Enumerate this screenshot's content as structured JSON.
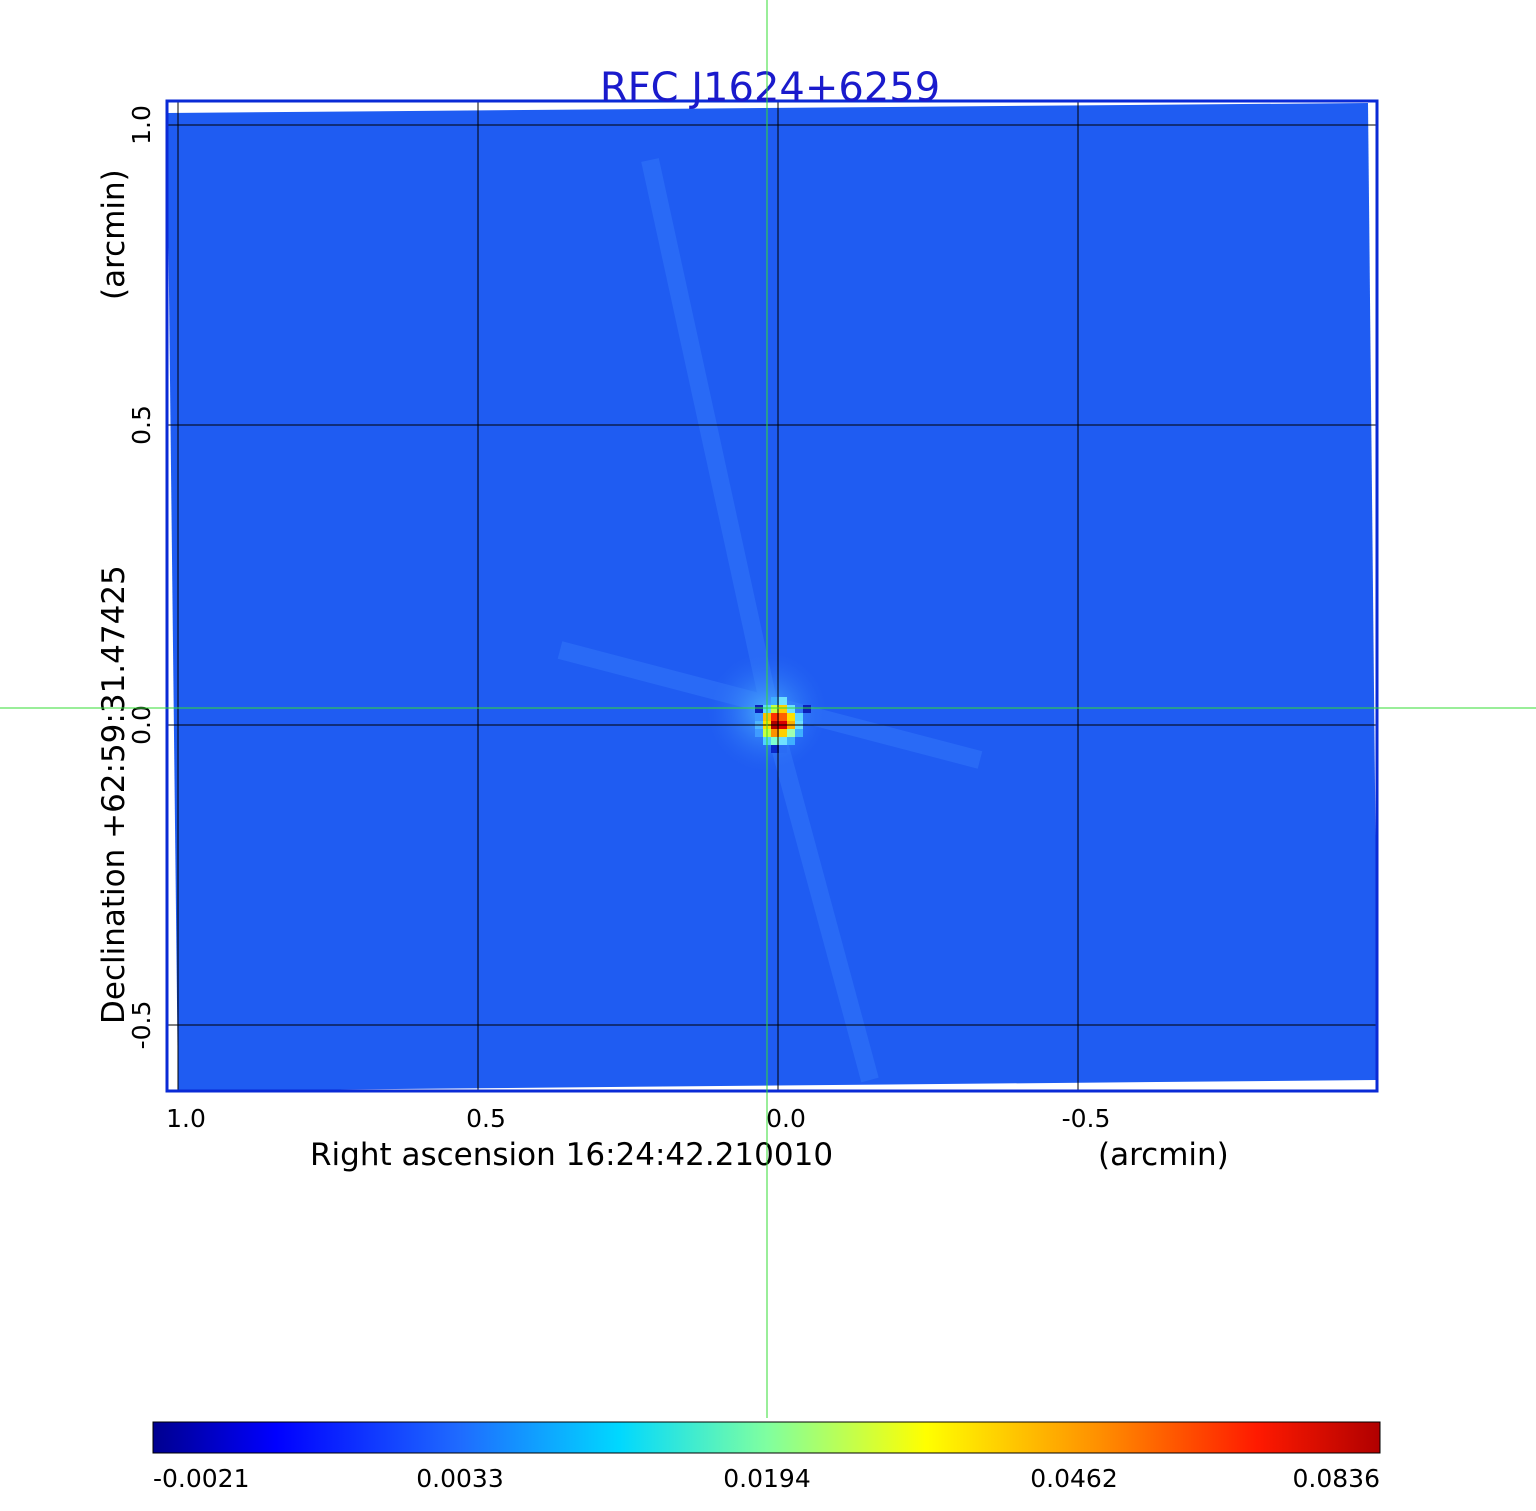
{
  "chart_data": {
    "type": "heatmap",
    "title": "RFC J1624+6259",
    "xlabel": "Right ascension  16:24:42.210010",
    "xunit": "(arcmin)",
    "ylabel": "Declination  +62:59:31.47425",
    "yunit": "(arcmin)",
    "x_ticks": [
      "1.0",
      "0.5",
      "0.0",
      "-0.5"
    ],
    "x_tick_values": [
      1.0,
      0.5,
      0.0,
      -0.5
    ],
    "y_ticks": [
      "1.0",
      "0.5",
      "0.0",
      "-0.5"
    ],
    "y_tick_values": [
      1.0,
      0.5,
      0.0,
      -0.5
    ],
    "xlim": [
      1.0,
      -1.0
    ],
    "ylim": [
      -0.62,
      1.0
    ],
    "grid": true,
    "colorbar": {
      "ticks": [
        "-0.0021",
        "0.0033",
        "0.0194",
        "0.0462",
        "0.0836"
      ],
      "tick_values": [
        -0.0021,
        0.0033,
        0.0194,
        0.0462,
        0.0836
      ],
      "colormap": "jet"
    },
    "source": {
      "ra_offset_arcmin": 0.0,
      "dec_offset_arcmin": 0.0,
      "peak_value": 0.0836
    },
    "crosshair": {
      "x_arcmin": 0.0,
      "y_arcmin": 0.0
    }
  },
  "colors": {
    "title": "#1a1acc",
    "frame": "#0a2ad6",
    "background_field": "#1f5cf2",
    "crosshair": "#33dd33",
    "grid": "#000000"
  }
}
